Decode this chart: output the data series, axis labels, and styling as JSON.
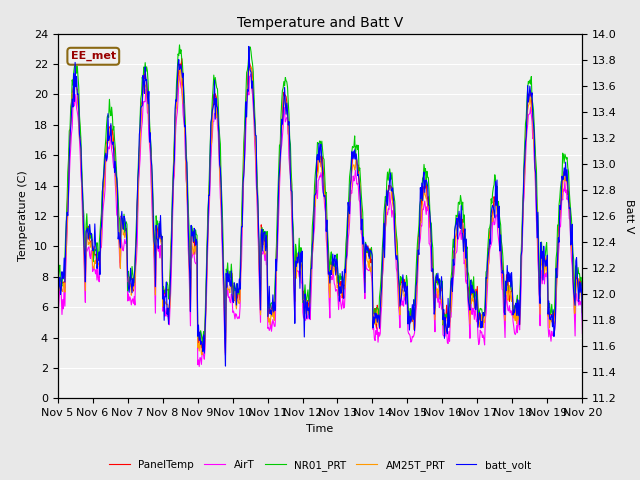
{
  "title": "Temperature and Batt V",
  "ylabel_left": "Temperature (C)",
  "ylabel_right": "Batt V",
  "xlabel": "Time",
  "annotation": "EE_met",
  "ylim_left": [
    0,
    24
  ],
  "ylim_right": [
    11.2,
    14.0
  ],
  "yticks_left": [
    0,
    2,
    4,
    6,
    8,
    10,
    12,
    14,
    16,
    18,
    20,
    22,
    24
  ],
  "yticks_right": [
    11.2,
    11.4,
    11.6,
    11.8,
    12.0,
    12.2,
    12.4,
    12.6,
    12.8,
    13.0,
    13.2,
    13.4,
    13.6,
    13.8,
    14.0
  ],
  "xtick_labels": [
    "Nov 5",
    "Nov 6",
    "Nov 7",
    "Nov 8",
    "Nov 9",
    "Nov 10",
    "Nov 11",
    "Nov 12",
    "Nov 13",
    "Nov 14",
    "Nov 15",
    "Nov 16",
    "Nov 17",
    "Nov 18",
    "Nov 19",
    "Nov 20"
  ],
  "series_colors": {
    "PanelTemp": "#ff0000",
    "AirT": "#ff00ff",
    "NR01_PRT": "#00cc00",
    "AM25T_PRT": "#ff9900",
    "batt_volt": "#0000ff"
  },
  "legend_labels": [
    "PanelTemp",
    "AirT",
    "NR01_PRT",
    "AM25T_PRT",
    "batt_volt"
  ],
  "bg_color": "#e8e8e8",
  "plot_bg_color": "#f0f0f0",
  "grid_color": "#ffffff"
}
